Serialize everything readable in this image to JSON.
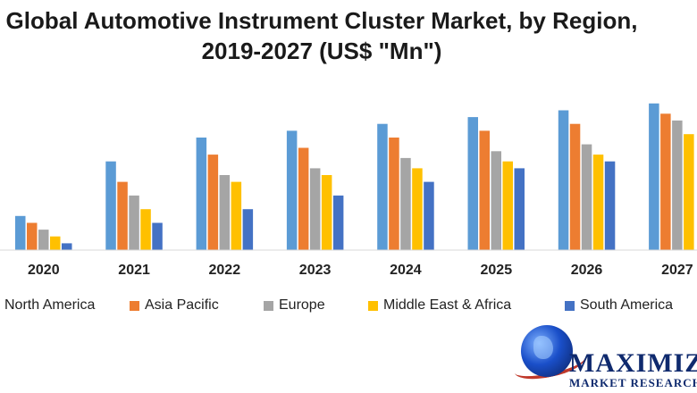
{
  "chart_data": {
    "type": "bar",
    "title_line1": "Global Automotive Instrument Cluster Market, by Region,",
    "title_line2": "2019-2027 (US$ \"Mn\")",
    "categories": [
      "2020",
      "2021",
      "2022",
      "2023",
      "2024",
      "2025",
      "2026",
      "2027"
    ],
    "series": [
      {
        "name": "North America",
        "color": "#5b9bd5",
        "values": [
          50,
          130,
          165,
          175,
          185,
          195,
          205,
          215
        ]
      },
      {
        "name": "Asia Pacific",
        "color": "#ed7d31",
        "values": [
          40,
          100,
          140,
          150,
          165,
          175,
          185,
          200
        ]
      },
      {
        "name": "Europe",
        "color": "#a5a5a5",
        "values": [
          30,
          80,
          110,
          120,
          135,
          145,
          155,
          190
        ]
      },
      {
        "name": "Middle East & Africa",
        "color": "#ffc000",
        "values": [
          20,
          60,
          100,
          110,
          120,
          130,
          140,
          170
        ]
      },
      {
        "name": "South America",
        "color": "#4472c4",
        "values": [
          10,
          40,
          60,
          80,
          100,
          120,
          130,
          null
        ]
      }
    ],
    "ylim": [
      0,
      220
    ],
    "grid": false,
    "legend_position": "bottom"
  },
  "logo": {
    "name_line1": "MAXIMIZE",
    "name_line2": "MARKET RESEARCH P"
  }
}
